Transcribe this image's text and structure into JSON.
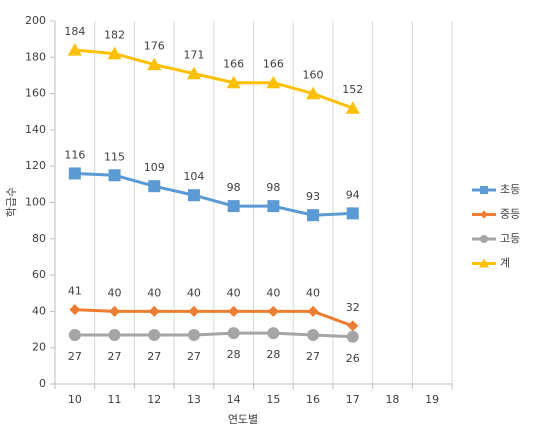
{
  "chart_data": {
    "type": "line",
    "x_label": "연도별",
    "y_label": "학급수",
    "categories": [
      "10",
      "11",
      "12",
      "13",
      "14",
      "15",
      "16",
      "17",
      "18",
      "19"
    ],
    "series": [
      {
        "name": "초등",
        "color": "#5b9bd5",
        "marker": "square",
        "label_position": "above",
        "values": [
          116,
          115,
          109,
          104,
          98,
          98,
          93,
          94,
          null,
          null
        ]
      },
      {
        "name": "중등",
        "color": "#ed7d31",
        "marker": "diamond",
        "label_position": "above",
        "values": [
          41,
          40,
          40,
          40,
          40,
          40,
          40,
          32,
          null,
          null
        ]
      },
      {
        "name": "고등",
        "color": "#a5a5a5",
        "marker": "circle",
        "label_position": "below",
        "values": [
          27,
          27,
          27,
          27,
          28,
          28,
          27,
          26,
          null,
          null
        ]
      },
      {
        "name": "계",
        "color": "#ffc000",
        "marker": "triangle",
        "label_position": "above",
        "values": [
          184,
          182,
          176,
          171,
          166,
          166,
          160,
          152,
          null,
          null
        ]
      }
    ],
    "ylim": [
      0,
      200
    ],
    "yticks": [
      0,
      20,
      40,
      60,
      80,
      100,
      120,
      140,
      160,
      180,
      200
    ],
    "grid": "vertical",
    "legend": "right"
  }
}
